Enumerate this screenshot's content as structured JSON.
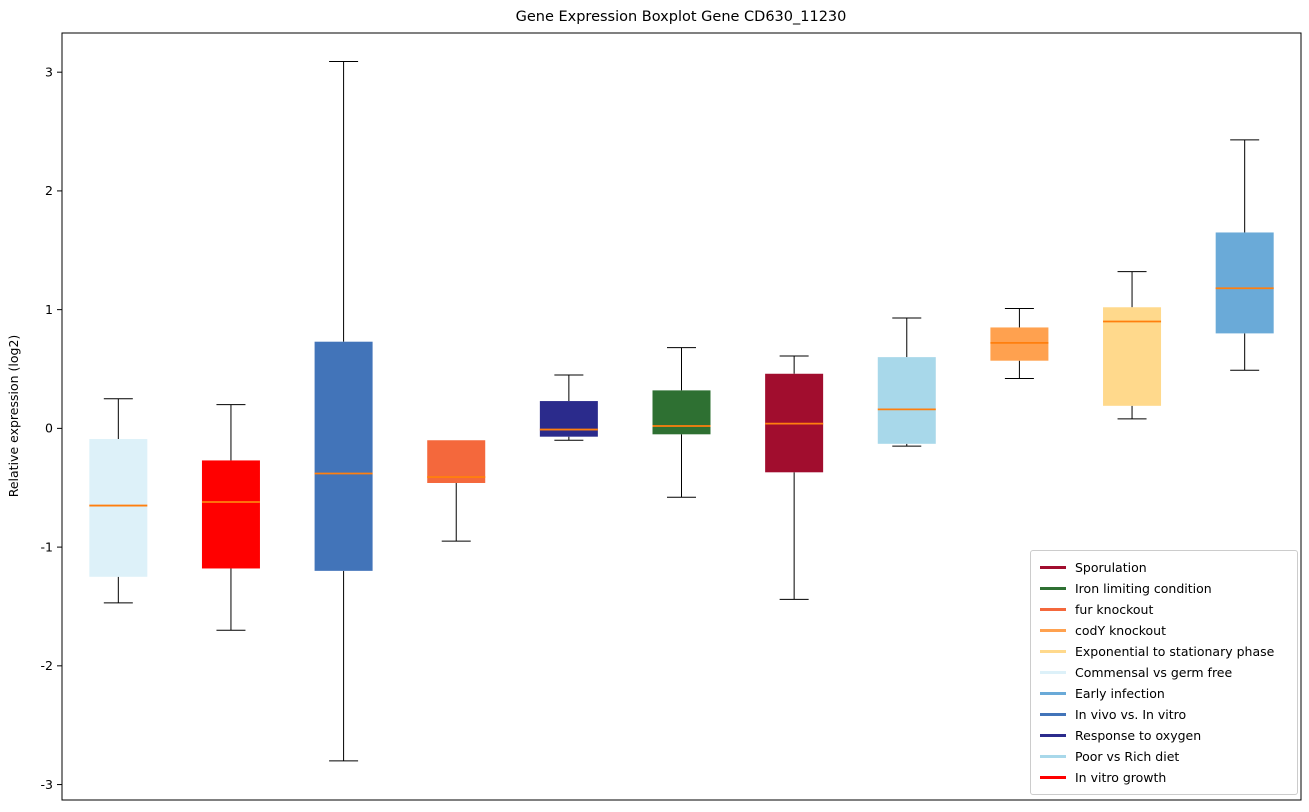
{
  "figure": {
    "title": "Gene Expression Boxplot Gene CD630_11230",
    "ylabel": "Relative expression (log2)"
  },
  "chart_data": {
    "type": "boxplot",
    "title": "Gene Expression Boxplot Gene CD630_11230",
    "xlabel": "",
    "ylabel": "Relative expression (log2)",
    "ylim": [
      -3.13,
      3.33
    ],
    "yticks": [
      -3,
      -2,
      -1,
      0,
      1,
      2,
      3
    ],
    "grid": false,
    "median_color": "#ff7f0e",
    "whisker_color": "#000000",
    "legend_position": "lower right",
    "series": [
      {
        "name": "Commensal vs germ free",
        "color": "#ddf1f9",
        "whisker_low": -1.47,
        "q1": -1.25,
        "median": -0.65,
        "q3": -0.09,
        "whisker_high": 0.25
      },
      {
        "name": "In vitro growth",
        "color": "#ff0000",
        "whisker_low": -1.7,
        "q1": -1.18,
        "median": -0.62,
        "q3": -0.27,
        "whisker_high": 0.2
      },
      {
        "name": "In vivo vs. In vitro",
        "color": "#4274b9",
        "whisker_low": -2.8,
        "q1": -1.2,
        "median": -0.38,
        "q3": 0.73,
        "whisker_high": 3.09
      },
      {
        "name": "fur knockout",
        "color": "#f4683c",
        "whisker_low": -0.95,
        "q1": -0.46,
        "median": -0.41,
        "q3": -0.1,
        "whisker_high": -0.1
      },
      {
        "name": "Response to oxygen",
        "color": "#2b2b8c",
        "whisker_low": -0.1,
        "q1": -0.07,
        "median": -0.01,
        "q3": 0.23,
        "whisker_high": 0.45
      },
      {
        "name": "Iron limiting condition",
        "color": "#2e7032",
        "whisker_low": -0.58,
        "q1": -0.05,
        "median": 0.02,
        "q3": 0.32,
        "whisker_high": 0.68
      },
      {
        "name": "Sporulation",
        "color": "#a10d2e",
        "whisker_low": -1.44,
        "q1": -0.37,
        "median": 0.04,
        "q3": 0.46,
        "whisker_high": 0.61
      },
      {
        "name": "Poor vs Rich diet",
        "color": "#a8d8ea",
        "whisker_low": -0.15,
        "q1": -0.13,
        "median": 0.16,
        "q3": 0.6,
        "whisker_high": 0.93
      },
      {
        "name": "codY knockout",
        "color": "#ffa14f",
        "whisker_low": 0.42,
        "q1": 0.57,
        "median": 0.72,
        "q3": 0.85,
        "whisker_high": 1.01
      },
      {
        "name": "Exponential to stationary phase",
        "color": "#ffd98c",
        "whisker_low": 0.08,
        "q1": 0.19,
        "median": 0.9,
        "q3": 1.02,
        "whisker_high": 1.32
      },
      {
        "name": "Early infection",
        "color": "#6aaad8",
        "whisker_low": 0.49,
        "q1": 0.8,
        "median": 1.18,
        "q3": 1.65,
        "whisker_high": 2.43
      }
    ],
    "legend": {
      "entries": [
        {
          "label": "Sporulation",
          "color": "#a10d2e"
        },
        {
          "label": "Iron limiting condition",
          "color": "#2e7032"
        },
        {
          "label": "fur knockout",
          "color": "#f4683c"
        },
        {
          "label": "codY knockout",
          "color": "#ffa14f"
        },
        {
          "label": "Exponential to stationary phase",
          "color": "#ffd98c"
        },
        {
          "label": "Commensal vs germ free",
          "color": "#ddf1f9"
        },
        {
          "label": "Early infection",
          "color": "#6aaad8"
        },
        {
          "label": "In vivo vs. In vitro",
          "color": "#4274b9"
        },
        {
          "label": "Response to oxygen",
          "color": "#2b2b8c"
        },
        {
          "label": "Poor vs Rich diet",
          "color": "#a8d8ea"
        },
        {
          "label": "In vitro growth",
          "color": "#ff0000"
        }
      ]
    }
  }
}
